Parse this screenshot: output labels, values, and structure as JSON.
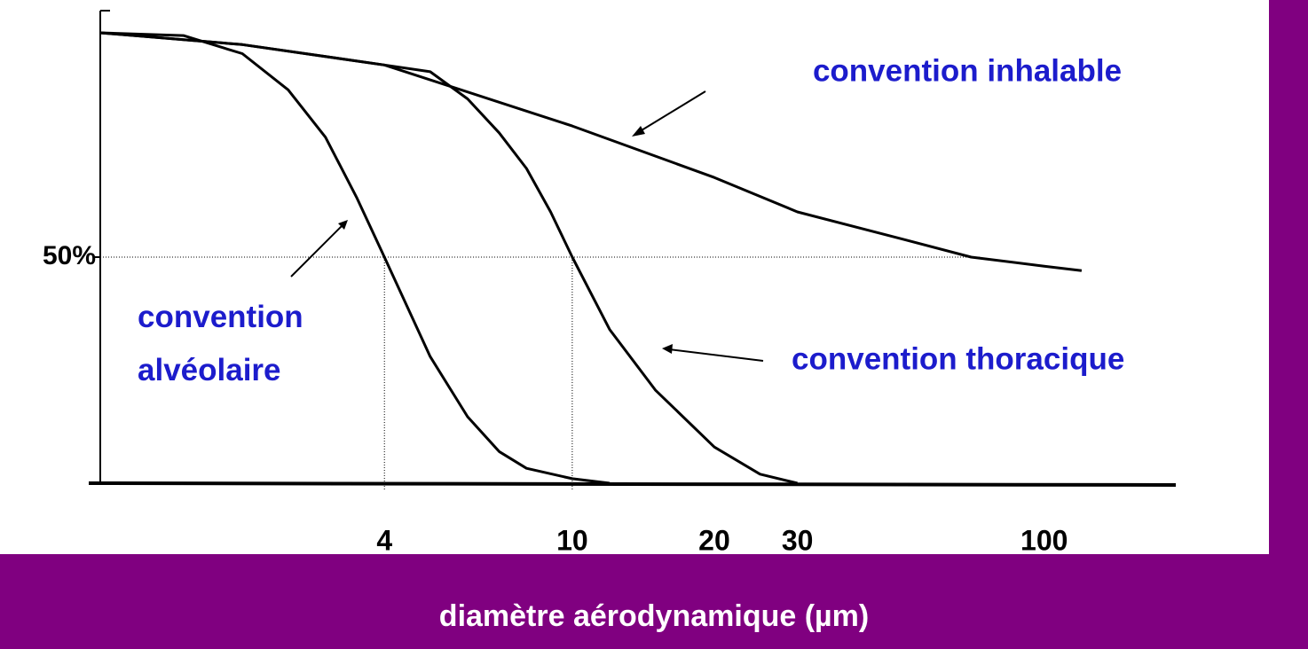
{
  "chart_data": {
    "type": "line",
    "xlabel": "diamètre aérodynamique (µm)",
    "x_scale": "log",
    "xlim": [
      1,
      190
    ],
    "xticks": [
      4,
      10,
      20,
      30,
      100
    ],
    "ylim": [
      0,
      100
    ],
    "yticks": [
      {
        "value": 50,
        "label": "50%"
      }
    ],
    "reference_lines": {
      "y": 50,
      "x": [
        4,
        10
      ]
    },
    "series": [
      {
        "name": "convention inhalable",
        "color": "#000000",
        "x": [
          1,
          2,
          4,
          10,
          20,
          30,
          50,
          70,
          100,
          120
        ],
        "values": [
          99.6,
          97,
          92.5,
          79,
          67.6,
          60,
          54,
          50,
          48,
          47
        ]
      },
      {
        "name": "convention alvéolaire",
        "color": "#000000",
        "x": [
          1,
          1.5,
          2,
          2.5,
          3,
          3.5,
          4,
          5,
          6,
          7,
          8,
          10,
          12
        ],
        "values": [
          99.6,
          99,
          95,
          87,
          76.5,
          63,
          50,
          28,
          14.7,
          7,
          3.3,
          1,
          0
        ]
      },
      {
        "name": "convention thoracique",
        "color": "#000000",
        "x": [
          1,
          2,
          4,
          5,
          6,
          7,
          8,
          9,
          10,
          12,
          15,
          20,
          25,
          30
        ],
        "values": [
          99.6,
          97,
          92.5,
          91,
          85,
          77.5,
          69.6,
          60,
          50,
          34,
          20.6,
          8,
          2,
          0
        ]
      }
    ]
  }
}
